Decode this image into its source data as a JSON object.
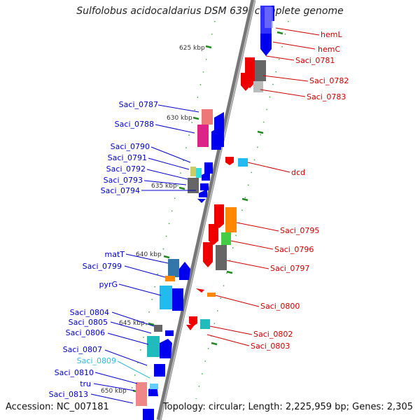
{
  "title": "Sulfolobus acidocaldarius DSM 639, complete genome",
  "accession": "Accession: NC_007181",
  "summary": "Topology: circular; Length: 2,225,959 bp; Genes: 2,305",
  "kbp_labels": [
    "625 kbp",
    "630 kbp",
    "635 kbp",
    "640 kbp",
    "645 kbp",
    "650 kbp"
  ],
  "right_genes": [
    "hemL",
    "hemC",
    "Saci_0781",
    "Saci_0782",
    "Saci_0783",
    "dcd",
    "Saci_0795",
    "Saci_0796",
    "Saci_0797",
    "Saci_0800",
    "Saci_0802",
    "Saci_0803"
  ],
  "left_genes": [
    "Saci_0787",
    "Saci_0788",
    "Saci_0790",
    "Saci_0791",
    "Saci_0792",
    "Saci_0793",
    "Saci_0794",
    "matT",
    "Saci_0799",
    "pyrG",
    "Saci_0804",
    "Saci_0805",
    "Saci_0806",
    "Saci_0807",
    "Saci_0809",
    "Saci_0810",
    "tru",
    "Saci_0813"
  ],
  "colors": {
    "right_label": "#cc0000",
    "left_label": "#0000cc",
    "highlight_label": "#33bbdd",
    "forward": "#0000ee",
    "reverse": "#ee0000",
    "tick": "#228822"
  }
}
